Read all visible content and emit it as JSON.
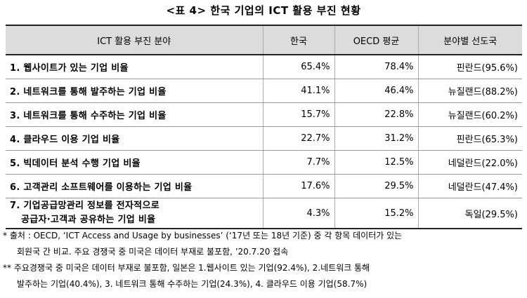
{
  "title": "<표 4> 한국 기업의 ICT 활용 부진 현황",
  "table": {
    "headers": [
      "ICT 활용 부진 분야",
      "한국",
      "OECD 평균",
      "분야별 선도국"
    ],
    "rows": [
      {
        "item": "1. 웹사이트가 있는 기업 비율",
        "korea": "65.4%",
        "oecd": "78.4%",
        "leader": "핀란드(95.6%)"
      },
      {
        "item": "2. 네트워크를 통해 발주하는 기업 비율",
        "korea": "41.1%",
        "oecd": "46.4%",
        "leader": "뉴질랜드(88.2%)"
      },
      {
        "item": "3. 네트워크를 통해 수주하는 기업 비율",
        "korea": "15.7%",
        "oecd": "22.8%",
        "leader": "뉴질랜드(60.2%)"
      },
      {
        "item": "4. 클라우드 이용 기업 비율",
        "korea": "22.7%",
        "oecd": "31.2%",
        "leader": "핀란드(65.3%)"
      },
      {
        "item": "5. 빅데이터 분석 수행 기업 비율",
        "korea": "7.7%",
        "oecd": "12.5%",
        "leader": "네덜란드(22.0%)"
      },
      {
        "item": "6. 고객관리 소프트웨어를 이용하는 기업 비율",
        "korea": "17.6%",
        "oecd": "29.5%",
        "leader": "네덜란드(47.4%)"
      },
      {
        "item_line1": "7. 기업공급망관리 정보를 전자적으로",
        "item_line2": "공급자·고객과 공유하는 기업 비율",
        "korea": "4.3%",
        "oecd": "15.2%",
        "leader": "독일(29.5%)"
      }
    ]
  },
  "notes": {
    "note1_line1": "* 출처 : OECD, ‘ICT Access and Usage by businesses’ (‘17년 또는 18년 기준) 중 각 항목 데이터가 있는",
    "note1_line2": "회원국 간 비교. 주요 경쟁국 중 미국은 데이터 부재로 불포함, ’20.7.20 접속",
    "note2_line1": "** 주요경쟁국 중 미국은 데이터 부재로 불포함, 일본은 1.웹사이트 있는 기업(92.4%), 2.네트워크 통해",
    "note2_line2": "발주하는 기업(40.4%), 3. 네트워크 통해 수주하는 기업(24.3%), 4. 클라우드 이용 기업(58.7%)"
  }
}
